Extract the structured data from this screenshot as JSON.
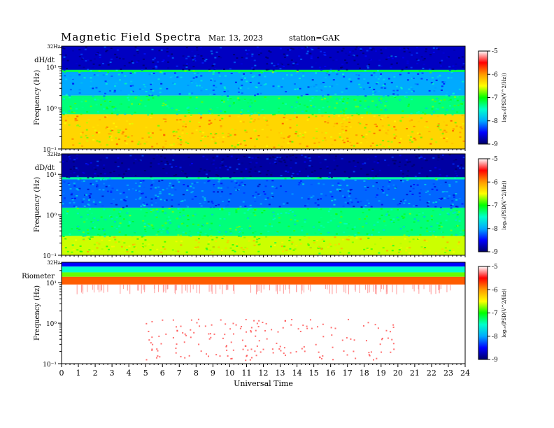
{
  "header": {
    "title": "Magnetic  Field  Spectra",
    "date": "Mar. 13, 2023",
    "station": "station=GAK"
  },
  "colors": {
    "colormap": [
      "#000066",
      "#0000ff",
      "#00aaff",
      "#00ffcc",
      "#00ff00",
      "#ffff00",
      "#ff9900",
      "#ff0000",
      "#ffffff"
    ],
    "background": "#ffffff"
  },
  "chart_data": [
    {
      "type": "heatmap",
      "panel_label": "dH/dt",
      "ylabel": "Frequency  (Hz)",
      "y_scale": "log",
      "y_top_label": "32Hz",
      "yticks": [
        "10⁻¹",
        "10⁰",
        "10¹"
      ],
      "xlim": [
        0,
        24
      ],
      "xticks": [
        "0",
        "1",
        "2",
        "3",
        "4",
        "5",
        "6",
        "7",
        "8",
        "9",
        "10",
        "11",
        "12",
        "13",
        "14",
        "15",
        "16",
        "17",
        "18",
        "19",
        "20",
        "21",
        "22",
        "23",
        "24"
      ],
      "xlabel": "",
      "colorbar": {
        "label": "log₁₀(PSD(V^2/Hz))",
        "ticks": [
          "-5",
          "-6",
          "-7",
          "-8",
          "-9"
        ],
        "range": [
          -9,
          -5
        ]
      },
      "bands": [
        {
          "freq_hz": [
            8,
            32
          ],
          "log_psd": -8.7
        },
        {
          "freq_hz": [
            7.5,
            8.5
          ],
          "log_psd": -7.2
        },
        {
          "freq_hz": [
            2,
            7.5
          ],
          "log_psd": -8.0
        },
        {
          "freq_hz": [
            0.7,
            2
          ],
          "log_psd": -7.3
        },
        {
          "freq_hz": [
            0.1,
            0.7
          ],
          "log_psd": -6.3
        }
      ]
    },
    {
      "type": "heatmap",
      "panel_label": "dD/dt",
      "ylabel": "Frequency  (Hz)",
      "y_scale": "log",
      "y_top_label": "32Hz",
      "yticks": [
        "10⁻¹",
        "10⁰",
        "10¹"
      ],
      "xlim": [
        0,
        24
      ],
      "xticks": [
        "0",
        "1",
        "2",
        "3",
        "4",
        "5",
        "6",
        "7",
        "8",
        "9",
        "10",
        "11",
        "12",
        "13",
        "14",
        "15",
        "16",
        "17",
        "18",
        "19",
        "20",
        "21",
        "22",
        "23",
        "24"
      ],
      "xlabel": "",
      "colorbar": {
        "label": "log₁₀(PSD(V^2/Hz))",
        "ticks": [
          "-5",
          "-6",
          "-7",
          "-8",
          "-9"
        ],
        "range": [
          -9,
          -5
        ]
      },
      "bands": [
        {
          "freq_hz": [
            8,
            32
          ],
          "log_psd": -8.8
        },
        {
          "freq_hz": [
            7.5,
            8.5
          ],
          "log_psd": -7.4
        },
        {
          "freq_hz": [
            1.5,
            7.5
          ],
          "log_psd": -8.2
        },
        {
          "freq_hz": [
            0.3,
            1.5
          ],
          "log_psd": -7.3
        },
        {
          "freq_hz": [
            0.1,
            0.3
          ],
          "log_psd": -6.6
        }
      ]
    },
    {
      "type": "heatmap",
      "panel_label": "Riometer",
      "ylabel": "Frequency  (Hz)",
      "y_scale": "log",
      "y_top_label": "32Hz",
      "yticks": [
        "10⁻¹",
        "10⁰",
        "10¹"
      ],
      "xlim": [
        0,
        24
      ],
      "xticks": [
        "0",
        "1",
        "2",
        "3",
        "4",
        "5",
        "6",
        "7",
        "8",
        "9",
        "10",
        "11",
        "12",
        "13",
        "14",
        "15",
        "16",
        "17",
        "18",
        "19",
        "20",
        "21",
        "22",
        "23",
        "24"
      ],
      "xlabel": "Universal  Time",
      "colorbar": {
        "label": "log₁₀(PSD(V^2/Hz))",
        "ticks": [
          "-5",
          "-6",
          "-7",
          "-8",
          "-9"
        ],
        "range": [
          -9,
          -5
        ]
      },
      "bands": [
        {
          "freq_hz": [
            25,
            32
          ],
          "log_psd": -8.5
        },
        {
          "freq_hz": [
            18,
            25
          ],
          "log_psd": -7.5
        },
        {
          "freq_hz": [
            14,
            18
          ],
          "log_psd": -6.8
        },
        {
          "freq_hz": [
            9,
            14
          ],
          "log_psd": -5.8
        },
        {
          "freq_hz": [
            0.1,
            9
          ],
          "log_psd": -5.0
        }
      ]
    }
  ]
}
